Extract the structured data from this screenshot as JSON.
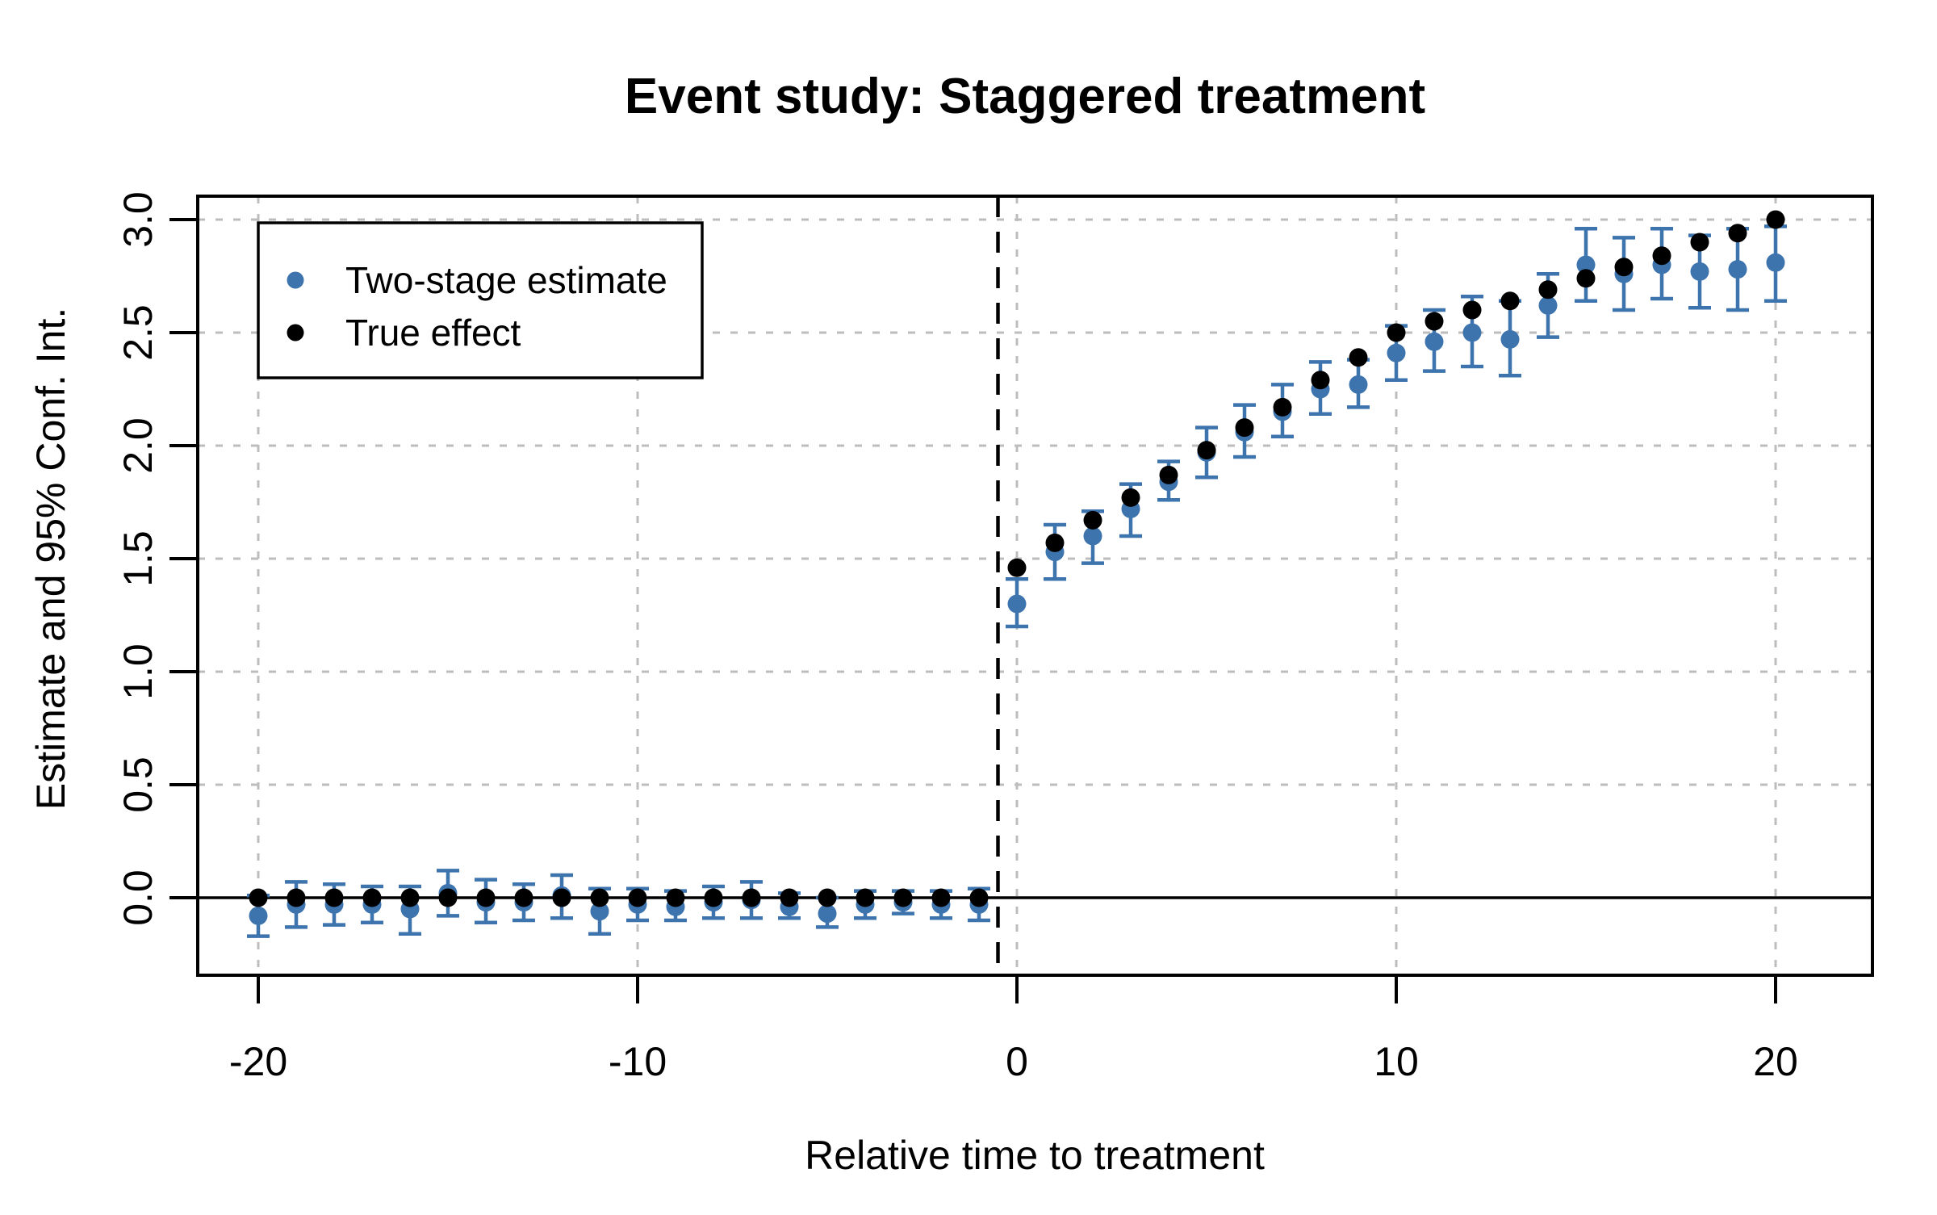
{
  "chart_data": {
    "type": "scatter",
    "title": "Event study: Staggered treatment",
    "xlabel": "Relative time to treatment",
    "ylabel": "Estimate and 95% Conf. Int.",
    "x_ticks": [
      -20,
      -10,
      0,
      10,
      20
    ],
    "x_tick_labels": [
      "-20",
      "-10",
      "0",
      "10",
      "20"
    ],
    "y_ticks": [
      0.0,
      0.5,
      1.0,
      1.5,
      2.0,
      2.5,
      3.0
    ],
    "y_tick_labels": [
      "0.0",
      "0.5",
      "1.0",
      "1.5",
      "2.0",
      "2.5",
      "3.0"
    ],
    "xlim": [
      -21.6,
      22.5
    ],
    "ylim": [
      -0.34,
      3.1
    ],
    "grid": true,
    "grid_color": "#BDBDBD",
    "reference_lines": {
      "horizontal_solid_y": 0,
      "vertical_dashed_x": -0.5
    },
    "legend": {
      "position": "top-left",
      "entries": [
        {
          "label": "Two-stage estimate",
          "color": "#3D74AE"
        },
        {
          "label": "True effect",
          "color": "#000000"
        }
      ]
    },
    "x": [
      -20,
      -19,
      -18,
      -17,
      -16,
      -15,
      -14,
      -13,
      -12,
      -11,
      -10,
      -9,
      -8,
      -7,
      -6,
      -5,
      -4,
      -3,
      -2,
      -1,
      0,
      1,
      2,
      3,
      4,
      5,
      6,
      7,
      8,
      9,
      10,
      11,
      12,
      13,
      14,
      15,
      16,
      17,
      18,
      19,
      20
    ],
    "series": [
      {
        "name": "Two-stage estimate",
        "style": "point-with-ci",
        "color": "#3D74AE",
        "values": [
          -0.08,
          -0.03,
          -0.03,
          -0.03,
          -0.05,
          0.02,
          -0.02,
          -0.02,
          0.01,
          -0.06,
          -0.03,
          -0.04,
          -0.02,
          -0.01,
          -0.04,
          -0.07,
          -0.03,
          -0.02,
          -0.03,
          -0.03,
          1.3,
          1.53,
          1.6,
          1.72,
          1.84,
          1.97,
          2.06,
          2.15,
          2.25,
          2.27,
          2.41,
          2.46,
          2.5,
          2.47,
          2.62,
          2.8,
          2.76,
          2.8,
          2.77,
          2.78,
          2.81
        ],
        "ci_low": [
          -0.17,
          -0.13,
          -0.12,
          -0.11,
          -0.16,
          -0.08,
          -0.11,
          -0.1,
          -0.09,
          -0.16,
          -0.1,
          -0.1,
          -0.09,
          -0.09,
          -0.09,
          -0.13,
          -0.09,
          -0.07,
          -0.09,
          -0.1,
          1.2,
          1.41,
          1.48,
          1.6,
          1.76,
          1.86,
          1.95,
          2.04,
          2.14,
          2.17,
          2.29,
          2.33,
          2.35,
          2.31,
          2.48,
          2.64,
          2.6,
          2.65,
          2.61,
          2.6,
          2.64
        ],
        "ci_high": [
          0.01,
          0.07,
          0.06,
          0.05,
          0.05,
          0.12,
          0.08,
          0.06,
          0.1,
          0.04,
          0.04,
          0.03,
          0.05,
          0.07,
          0.02,
          0.0,
          0.03,
          0.03,
          0.03,
          0.04,
          1.41,
          1.65,
          1.71,
          1.83,
          1.93,
          2.08,
          2.18,
          2.27,
          2.37,
          2.38,
          2.53,
          2.6,
          2.66,
          2.64,
          2.76,
          2.96,
          2.92,
          2.96,
          2.93,
          2.96,
          2.97
        ]
      },
      {
        "name": "True effect",
        "style": "point",
        "color": "#000000",
        "values": [
          0,
          0,
          0,
          0,
          0,
          0,
          0,
          0,
          0,
          0,
          0,
          0,
          0,
          0,
          0,
          0,
          0,
          0,
          0,
          0,
          1.46,
          1.57,
          1.67,
          1.77,
          1.87,
          1.98,
          2.08,
          2.17,
          2.29,
          2.39,
          2.5,
          2.55,
          2.6,
          2.64,
          2.69,
          2.74,
          2.79,
          2.84,
          2.9,
          2.94,
          3.0
        ]
      }
    ]
  }
}
